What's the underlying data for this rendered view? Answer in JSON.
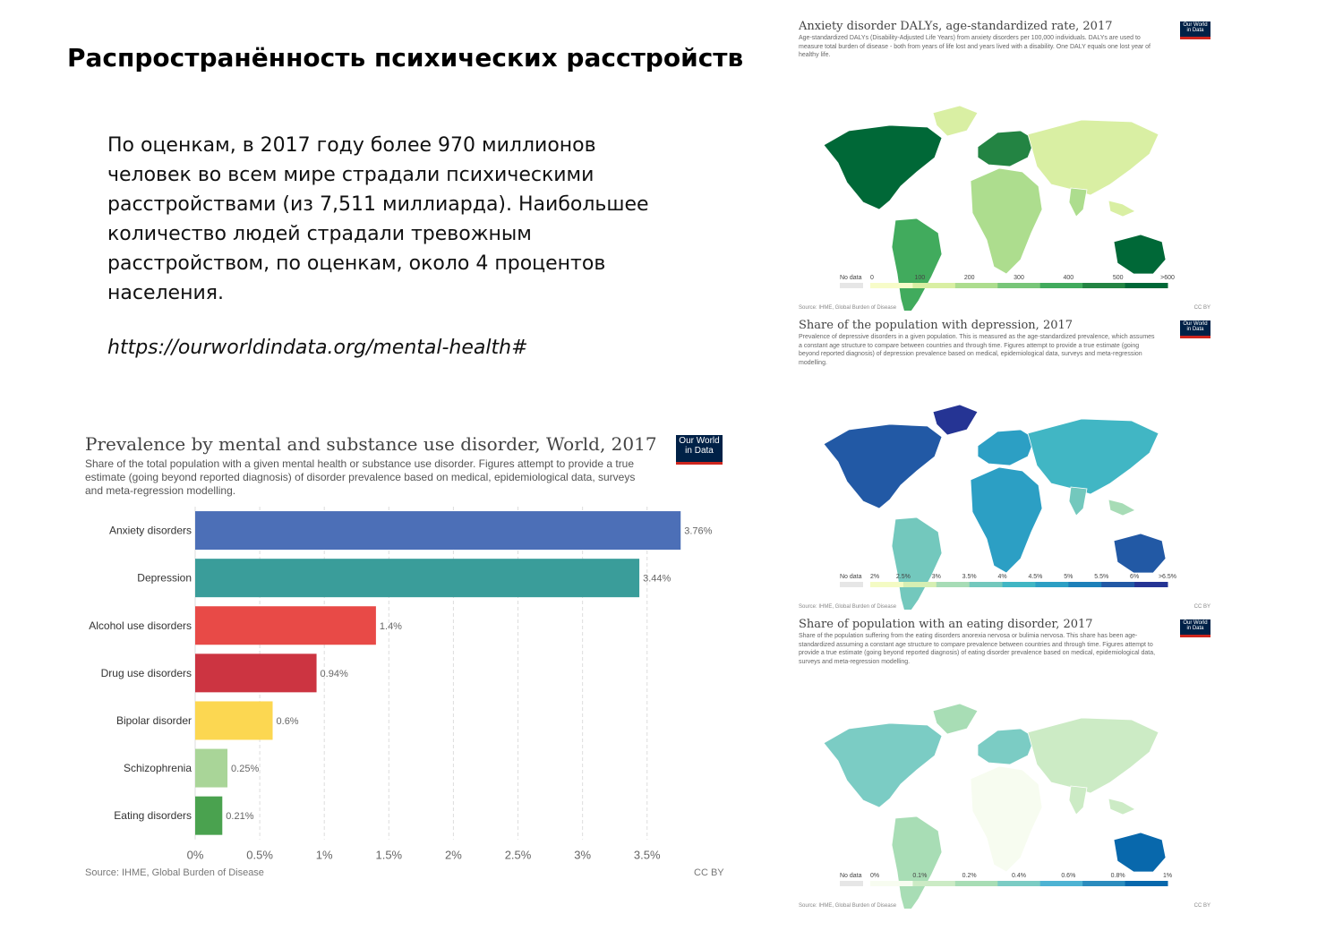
{
  "slide": {
    "title": "Распространённость психических расстройств",
    "intro": "По оценкам,  в 2017 году  более 970 миллионов человек во всем мире страдали психическими расстройствами (из 7,511 миллиарда). Наибольшее количество людей страдали тревожным расстройством, по оценкам, около 4 процентов населения.",
    "link": "https://ourworldindata.org/mental-health#"
  },
  "badge": {
    "line1": "Our World",
    "line2": "in Data",
    "bg": "#002147",
    "stripe": "#ce261e"
  },
  "chart_data": [
    {
      "type": "bar",
      "orientation": "horizontal",
      "title": "Prevalence by mental and substance use disorder, World, 2017",
      "subtitle": "Share of the total population with a given mental health or substance use disorder. Figures attempt to provide a true estimate (going beyond reported diagnosis) of disorder prevalence based on medical, epidemiological data, surveys and meta-regression modelling.",
      "categories": [
        "Anxiety disorders",
        "Depression",
        "Alcohol use disorders",
        "Drug use disorders",
        "Bipolar disorder",
        "Schizophrenia",
        "Eating disorders"
      ],
      "values": [
        3.76,
        3.44,
        1.4,
        0.94,
        0.6,
        0.25,
        0.21
      ],
      "value_labels": [
        "3.76%",
        "3.44%",
        "1.4%",
        "0.94%",
        "0.6%",
        "0.25%",
        "0.21%"
      ],
      "colors": [
        "#4c6fb7",
        "#3a9d9a",
        "#e84a47",
        "#cc3441",
        "#fcd751",
        "#a9d598",
        "#4aa24f"
      ],
      "xlim": [
        0,
        3.8
      ],
      "xticks": [
        0,
        0.5,
        1,
        1.5,
        2,
        2.5,
        3,
        3.5
      ],
      "xtick_labels": [
        "0%",
        "0.5%",
        "1%",
        "1.5%",
        "2%",
        "2.5%",
        "3%",
        "3.5%"
      ],
      "grid": true,
      "source": "Source: IHME, Global Burden of Disease",
      "license": "CC BY"
    },
    {
      "type": "heatmap",
      "title": "Anxiety disorder DALYs, age-standardized rate, 2017",
      "subtitle": "Age-standardized DALYs (Disability-Adjusted Life Years) from anxiety disorders per 100,000 individuals. DALYs are used to measure total burden of disease - both from years of life lost and years lived with a disability. One DALY equals one lost year of healthy life.",
      "legend_nodata": "No data",
      "legend_ticks": [
        "0",
        "100",
        "200",
        "300",
        "400",
        "500",
        ">600"
      ],
      "legend_colors": [
        "#f7fcc9",
        "#d9efa3",
        "#addd8e",
        "#78c679",
        "#41ab5d",
        "#238443",
        "#006837"
      ],
      "source": "Source: IHME, Global Burden of Disease",
      "license": "CC BY"
    },
    {
      "type": "heatmap",
      "title": "Share of the population with depression, 2017",
      "subtitle": "Prevalence of depressive disorders in a given population. This is measured as the age-standardized prevalence, which assumes a constant age structure to compare between countries and through time. Figures attempt to provide a true estimate (going beyond reported diagnosis) of depression prevalence based on medical, epidemiological data, surveys and meta-regression modelling.",
      "legend_nodata": "No data",
      "legend_ticks": [
        "2%",
        "2.5%",
        "3%",
        "3.5%",
        "4%",
        "4.5%",
        "5%",
        "5.5%",
        "6%",
        ">6.5%"
      ],
      "legend_colors": [
        "#f4fbc4",
        "#d6efb3",
        "#a7dcb6",
        "#73c8bd",
        "#41b6c4",
        "#2c9fc4",
        "#1d80b9",
        "#2259a5",
        "#253494"
      ],
      "source": "Source: IHME, Global Burden of Disease",
      "license": "CC BY"
    },
    {
      "type": "heatmap",
      "title": "Share of population with an eating disorder, 2017",
      "subtitle": "Share of the population suffering from the eating disorders anorexia nervosa or bulimia nervosa. This share has been age-standardized assuming a constant age structure to compare prevalence between countries and through time. Figures attempt to provide a true estimate (going beyond reported diagnosis) of eating disorder prevalence based on medical, epidemiological data, surveys and meta-regression modelling.",
      "legend_nodata": "No data",
      "legend_ticks": [
        "0%",
        "0.1%",
        "0.2%",
        "0.4%",
        "0.6%",
        "0.8%",
        "1%"
      ],
      "legend_colors": [
        "#f7fcf0",
        "#ccebc5",
        "#a8ddb5",
        "#7bccc4",
        "#4eb3d3",
        "#2b8cbe",
        "#0868ac"
      ],
      "source": "Source: IHME, Global Burden of Disease",
      "license": "CC BY"
    }
  ]
}
